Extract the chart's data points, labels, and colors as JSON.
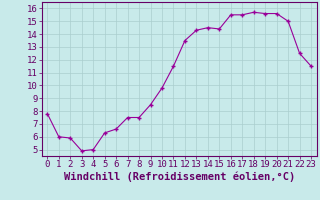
{
  "x": [
    0,
    1,
    2,
    3,
    4,
    5,
    6,
    7,
    8,
    9,
    10,
    11,
    12,
    13,
    14,
    15,
    16,
    17,
    18,
    19,
    20,
    21,
    22,
    23
  ],
  "y": [
    7.8,
    6.0,
    5.9,
    4.9,
    5.0,
    6.3,
    6.6,
    7.5,
    7.5,
    8.5,
    9.8,
    11.5,
    13.5,
    14.3,
    14.5,
    14.4,
    15.5,
    15.5,
    15.7,
    15.6,
    15.6,
    15.0,
    12.5,
    11.5
  ],
  "line_color": "#990099",
  "marker": "+",
  "marker_color": "#990099",
  "xlabel": "Windchill (Refroidissement éolien,°C)",
  "xlabel_color": "#660066",
  "bg_color": "#c8eaea",
  "grid_color": "#aacece",
  "axis_color": "#660066",
  "tick_color": "#660066",
  "ylim": [
    4.5,
    16.5
  ],
  "yticks": [
    5,
    6,
    7,
    8,
    9,
    10,
    11,
    12,
    13,
    14,
    15,
    16
  ],
  "xticks": [
    0,
    1,
    2,
    3,
    4,
    5,
    6,
    7,
    8,
    9,
    10,
    11,
    12,
    13,
    14,
    15,
    16,
    17,
    18,
    19,
    20,
    21,
    22,
    23
  ],
  "font_size": 6.5,
  "xlabel_fontsize": 7.5
}
